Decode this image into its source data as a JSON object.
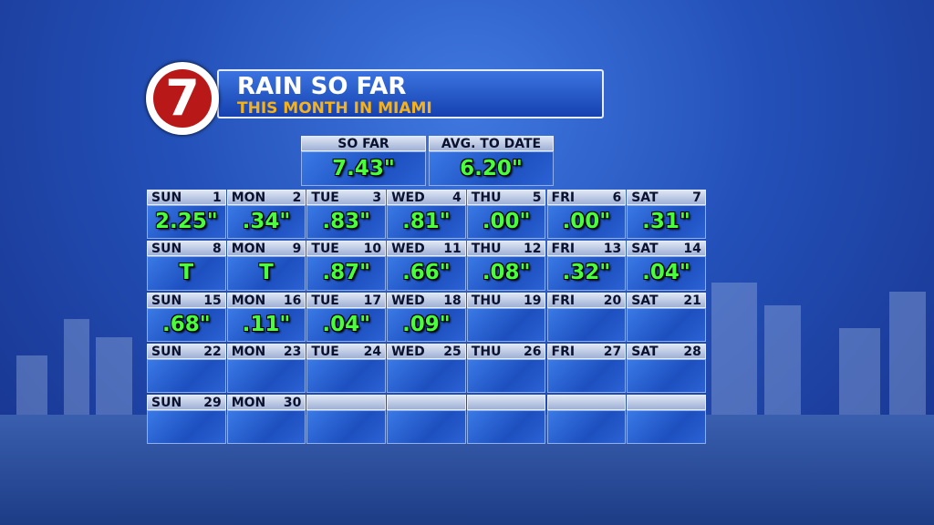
{
  "header": {
    "logo": "7",
    "title": "RAIN SO FAR",
    "subtitle": "THIS MONTH IN MIAMI"
  },
  "summary": [
    {
      "label": "SO FAR",
      "value": "7.43\""
    },
    {
      "label": "AVG. TO DATE",
      "value": "6.20\""
    }
  ],
  "calendar": [
    [
      {
        "day": "SUN",
        "date": 1,
        "rain": "2.25\""
      },
      {
        "day": "MON",
        "date": 2,
        "rain": ".34\""
      },
      {
        "day": "TUE",
        "date": 3,
        "rain": ".83\""
      },
      {
        "day": "WED",
        "date": 4,
        "rain": ".81\""
      },
      {
        "day": "THU",
        "date": 5,
        "rain": ".00\""
      },
      {
        "day": "FRI",
        "date": 6,
        "rain": ".00\""
      },
      {
        "day": "SAT",
        "date": 7,
        "rain": ".31\""
      }
    ],
    [
      {
        "day": "SUN",
        "date": 8,
        "rain": "T"
      },
      {
        "day": "MON",
        "date": 9,
        "rain": "T"
      },
      {
        "day": "TUE",
        "date": 10,
        "rain": ".87\""
      },
      {
        "day": "WED",
        "date": 11,
        "rain": ".66\""
      },
      {
        "day": "THU",
        "date": 12,
        "rain": ".08\""
      },
      {
        "day": "FRI",
        "date": 13,
        "rain": ".32\""
      },
      {
        "day": "SAT",
        "date": 14,
        "rain": ".04\""
      }
    ],
    [
      {
        "day": "SUN",
        "date": 15,
        "rain": ".68\""
      },
      {
        "day": "MON",
        "date": 16,
        "rain": ".11\""
      },
      {
        "day": "TUE",
        "date": 17,
        "rain": ".04\""
      },
      {
        "day": "WED",
        "date": 18,
        "rain": ".09\""
      },
      {
        "day": "THU",
        "date": 19
      },
      {
        "day": "FRI",
        "date": 20
      },
      {
        "day": "SAT",
        "date": 21
      }
    ],
    [
      {
        "day": "SUN",
        "date": 22
      },
      {
        "day": "MON",
        "date": 23
      },
      {
        "day": "TUE",
        "date": 24
      },
      {
        "day": "WED",
        "date": 25
      },
      {
        "day": "THU",
        "date": 26
      },
      {
        "day": "FRI",
        "date": 27
      },
      {
        "day": "SAT",
        "date": 28
      }
    ],
    [
      {
        "day": "SUN",
        "date": 29
      },
      {
        "day": "MON",
        "date": 30
      }
    ]
  ]
}
